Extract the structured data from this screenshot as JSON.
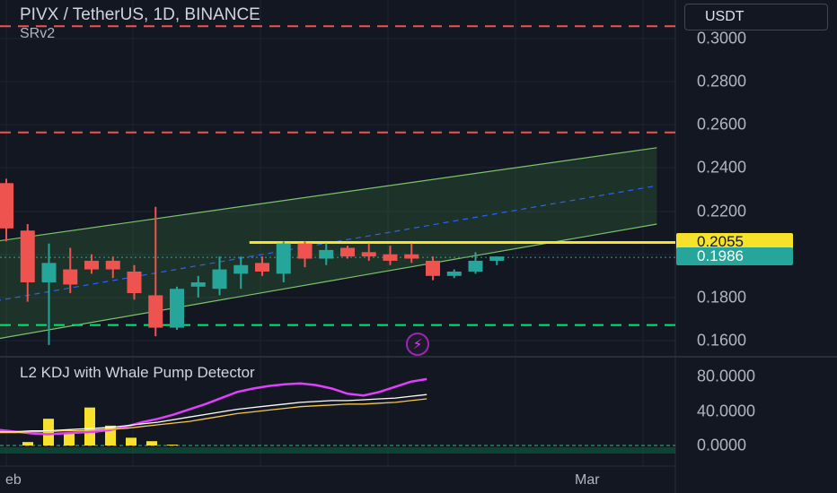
{
  "header": {
    "title": "PIVX / TetherUS, 1D, BINANCE",
    "indicator": "SRv2",
    "currency_button": "USDT"
  },
  "price_axis": {
    "ticks": [
      "0.3000",
      "0.2800",
      "0.2600",
      "0.2400",
      "0.2200",
      "0.1800",
      "0.1600"
    ],
    "badge_high": "0.2055",
    "badge_close": "0.1986"
  },
  "kdj_axis": {
    "ticks": [
      "80.0000",
      "40.0000",
      "0.0000"
    ]
  },
  "time_axis": {
    "labels": [
      "eb",
      "Mar"
    ]
  },
  "kdj_panel": {
    "title": "L2 KDJ with Whale Pump Detector"
  },
  "icons": {
    "alert": "lightning-bolt-icon"
  },
  "colors": {
    "background": "#131722",
    "up": "#26a69a",
    "down": "#ef5350",
    "resistance": "#f7e22b",
    "channel": "#7cc56b",
    "support_line": "#00e676",
    "resistance_line": "#ef5350",
    "k_line": "#e040fb",
    "d_line": "#ffffff",
    "j_line": "#f7c948"
  },
  "chart_data": [
    {
      "type": "candlestick",
      "title": "PIVX / TetherUS, 1D, BINANCE",
      "ylim": [
        0.152,
        0.308
      ],
      "candles": [
        {
          "o": 0.233,
          "h": 0.235,
          "l": 0.206,
          "c": 0.212
        },
        {
          "o": 0.211,
          "h": 0.214,
          "l": 0.178,
          "c": 0.187
        },
        {
          "o": 0.187,
          "h": 0.205,
          "l": 0.158,
          "c": 0.196
        },
        {
          "o": 0.193,
          "h": 0.203,
          "l": 0.182,
          "c": 0.186
        },
        {
          "o": 0.197,
          "h": 0.2,
          "l": 0.191,
          "c": 0.193
        },
        {
          "o": 0.197,
          "h": 0.199,
          "l": 0.189,
          "c": 0.193
        },
        {
          "o": 0.192,
          "h": 0.195,
          "l": 0.179,
          "c": 0.182
        },
        {
          "o": 0.181,
          "h": 0.222,
          "l": 0.162,
          "c": 0.166
        },
        {
          "o": 0.166,
          "h": 0.185,
          "l": 0.165,
          "c": 0.184
        },
        {
          "o": 0.185,
          "h": 0.19,
          "l": 0.18,
          "c": 0.187
        },
        {
          "o": 0.184,
          "h": 0.199,
          "l": 0.181,
          "c": 0.193
        },
        {
          "o": 0.191,
          "h": 0.199,
          "l": 0.184,
          "c": 0.195
        },
        {
          "o": 0.196,
          "h": 0.199,
          "l": 0.19,
          "c": 0.192
        },
        {
          "o": 0.191,
          "h": 0.206,
          "l": 0.187,
          "c": 0.205
        },
        {
          "o": 0.205,
          "h": 0.206,
          "l": 0.194,
          "c": 0.198
        },
        {
          "o": 0.198,
          "h": 0.205,
          "l": 0.195,
          "c": 0.202
        },
        {
          "o": 0.203,
          "h": 0.204,
          "l": 0.198,
          "c": 0.199
        },
        {
          "o": 0.201,
          "h": 0.205,
          "l": 0.197,
          "c": 0.199
        },
        {
          "o": 0.2,
          "h": 0.204,
          "l": 0.195,
          "c": 0.197
        },
        {
          "o": 0.2,
          "h": 0.205,
          "l": 0.196,
          "c": 0.198
        },
        {
          "o": 0.197,
          "h": 0.199,
          "l": 0.188,
          "c": 0.19
        },
        {
          "o": 0.19,
          "h": 0.193,
          "l": 0.189,
          "c": 0.192
        },
        {
          "o": 0.192,
          "h": 0.201,
          "l": 0.191,
          "c": 0.197
        },
        {
          "o": 0.197,
          "h": 0.199,
          "l": 0.195,
          "c": 0.199
        }
      ],
      "levels": {
        "resistance_high": 0.3057,
        "resistance_mid": 0.2565,
        "support": 0.1672,
        "horizontal_resistance": 0.2055,
        "last_close": 0.1986
      },
      "channel": {
        "upper": [
          [
            -0.5,
            0.206
          ],
          [
            30.5,
            0.2494
          ]
        ],
        "mid": [
          [
            -0.5,
            0.1784
          ],
          [
            30.5,
            0.2318
          ]
        ],
        "lower": [
          [
            -0.5,
            0.1607
          ],
          [
            30.5,
            0.214
          ]
        ]
      }
    },
    {
      "type": "line",
      "title": "L2 KDJ with Whale Pump Detector",
      "ylim": [
        -8,
        92
      ],
      "series": [
        {
          "values": [
            18,
            16,
            14,
            13,
            14,
            15,
            16,
            18,
            22,
            27,
            31,
            36,
            42,
            48,
            55,
            62,
            66,
            69,
            71,
            72,
            70,
            66,
            60,
            58,
            62,
            68,
            74,
            77
          ]
        },
        {
          "values": [
            16,
            16,
            17,
            17,
            18,
            19,
            20,
            21,
            23,
            25,
            27,
            30,
            33,
            36,
            39,
            42,
            44,
            46,
            48,
            50,
            51,
            52,
            52,
            53,
            54,
            55,
            57,
            59
          ]
        },
        {
          "values": [
            15,
            15,
            16,
            16,
            17,
            17,
            18,
            19,
            20,
            22,
            24,
            26,
            28,
            31,
            34,
            37,
            39,
            41,
            43,
            45,
            46,
            47,
            48,
            48,
            49,
            50,
            52,
            54
          ]
        }
      ],
      "bars": [
        4,
        31,
        14,
        44,
        23,
        9,
        5,
        1
      ]
    }
  ]
}
